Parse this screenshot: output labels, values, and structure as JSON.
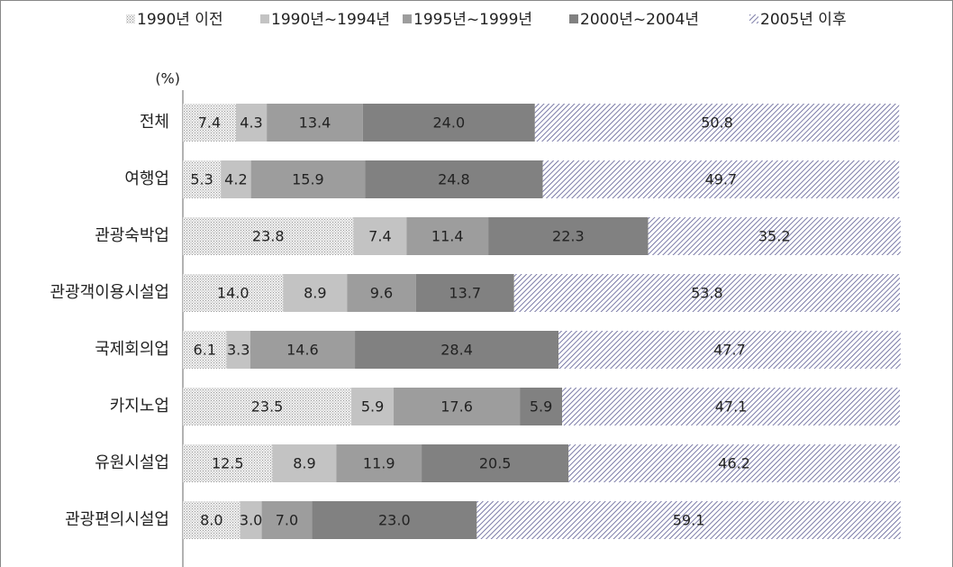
{
  "chart_data": {
    "type": "stacked_bar_horizontal",
    "y_label": "(%)",
    "categories": [
      "전체",
      "여행업",
      "관광숙박업",
      "관광객이용시설업",
      "국제회의업",
      "카지노업",
      "유원시설업",
      "관광편의시설업"
    ],
    "xlim": [
      0,
      100
    ],
    "legend": "top",
    "series": [
      {
        "name": "1990년 이전",
        "color": "#9a9a9a",
        "pattern": "dots",
        "values": [
          7.4,
          5.3,
          23.8,
          14.0,
          6.1,
          23.5,
          12.5,
          8.0
        ],
        "value_labels": [
          "7.4",
          "5.3",
          "23.8",
          "14.0",
          "6.1",
          "23.5",
          "12.5",
          "8.0"
        ]
      },
      {
        "name": "1990년~1994년",
        "color": "#c3c3c3",
        "pattern": "solid",
        "values": [
          4.3,
          4.2,
          7.4,
          8.9,
          3.3,
          5.9,
          8.9,
          3.0
        ],
        "value_labels": [
          "4.3",
          "4.2",
          "7.4",
          "8.9",
          "3.3",
          "5.9",
          "8.9",
          "3.0"
        ]
      },
      {
        "name": "1995년~1999년",
        "color": "#9d9d9d",
        "pattern": "solid",
        "values": [
          13.4,
          15.9,
          11.4,
          9.6,
          14.6,
          17.6,
          11.9,
          7.0
        ],
        "value_labels": [
          "13.4",
          "15.9",
          "11.4",
          "9.6",
          "14.6",
          "17.6",
          "11.9",
          "7.0"
        ]
      },
      {
        "name": "2000년~2004년",
        "color": "#818181",
        "pattern": "solid",
        "values": [
          24.0,
          24.8,
          22.3,
          13.7,
          28.4,
          5.9,
          20.5,
          23.0
        ],
        "value_labels": [
          "24.0",
          "24.8",
          "22.3",
          "13.7",
          "28.4",
          "5.9",
          "20.5",
          "23.0"
        ]
      },
      {
        "name": "2005년 이후",
        "color": "#5b5b92",
        "pattern": "hatch",
        "values": [
          50.8,
          49.7,
          35.2,
          53.8,
          47.7,
          47.1,
          46.2,
          59.1
        ],
        "value_labels": [
          "50.8",
          "49.7",
          "35.2",
          "53.8",
          "47.7",
          "47.1",
          "46.2",
          "59.1"
        ]
      }
    ]
  }
}
